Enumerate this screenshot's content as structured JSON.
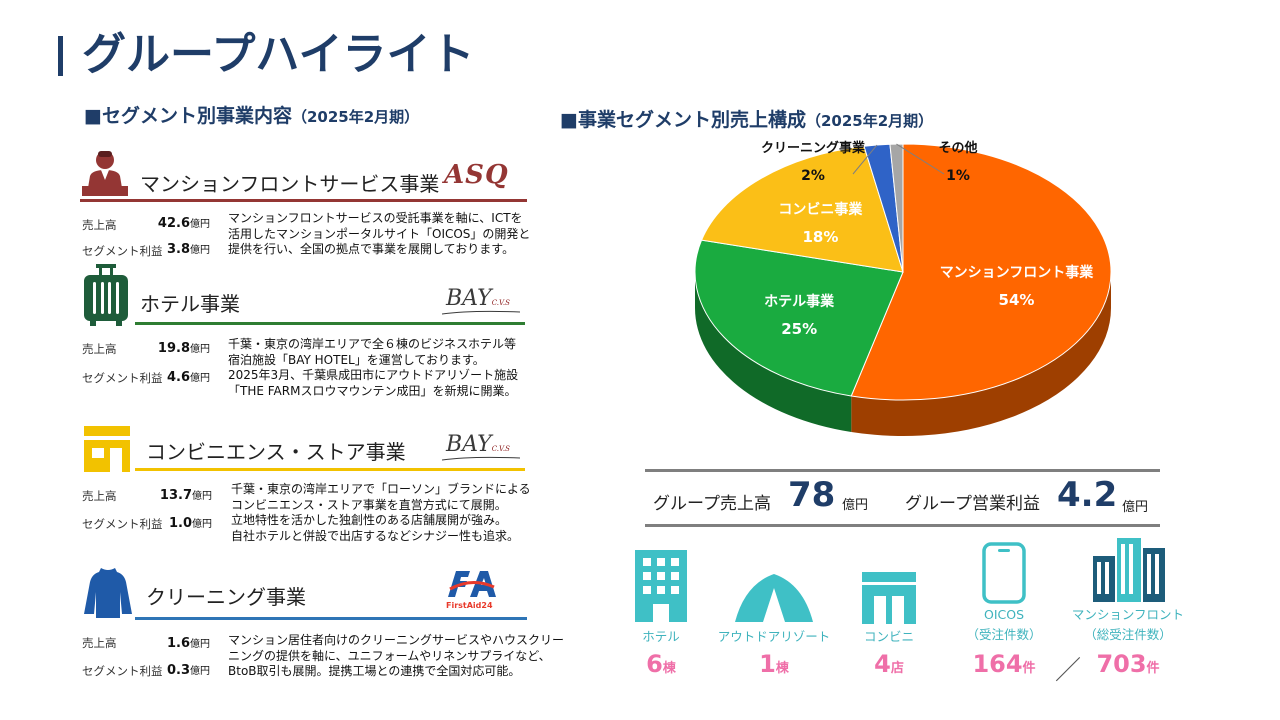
{
  "page": {
    "title": "グループハイライト"
  },
  "left_section": {
    "heading": "■セグメント別事業内容",
    "period": "（2025年2月期）",
    "segments": [
      {
        "name": "マンションフロントサービス事業",
        "logo": "ASQ",
        "color": "#943634",
        "sales_label": "売上高",
        "sales_value": "42.6",
        "sales_unit": "億円",
        "profit_label": "セグメント利益",
        "profit_value": "3.8",
        "profit_unit": "億円",
        "desc": [
          "マンションフロントサービスの受託事業を軸に、ICTを",
          "活用したマンションポータルサイト「OICOS」の開発と",
          "提供を行い、全国の拠点で事業を展開しております。"
        ]
      },
      {
        "name": "ホテル事業",
        "logo": "BAY",
        "logo_sub": "C.V.S",
        "color": "#2e7d32",
        "sales_label": "売上高",
        "sales_value": "19.8",
        "sales_unit": "億円",
        "profit_label": "セグメント利益",
        "profit_value": "4.6",
        "profit_unit": "億円",
        "desc": [
          "千葉・東京の湾岸エリアで全６棟のビジネスホテル等",
          "宿泊施設「BAY HOTEL」を運営しております。",
          "2025年3月、千葉県成田市にアウトドアリゾート施設",
          "「THE FARMスロウマウンテン成田」を新規に開業。"
        ]
      },
      {
        "name": "コンビニエンス・ストア事業",
        "logo": "BAY",
        "logo_sub": "C.V.S",
        "color": "#f2c200",
        "sales_label": "売上高",
        "sales_value": "13.7",
        "sales_unit": "億円",
        "profit_label": "セグメント利益",
        "profit_value": "1.0",
        "profit_unit": "億円",
        "desc": [
          "千葉・東京の湾岸エリアで「ローソン」ブランドによる",
          "コンビニエンス・ストア事業を直営方式にて展開。",
          "立地特性を活かした独創性のある店舗展開が強み。",
          "自社ホテルと併設で出店するなどシナジー性も追求。"
        ]
      },
      {
        "name": "クリーニング事業",
        "logo": "FA",
        "logo_sub": "FirstAid24",
        "color": "#2e75b6",
        "sales_label": "売上高",
        "sales_value": "1.6",
        "sales_unit": "億円",
        "profit_label": "セグメント利益",
        "profit_value": "0.3",
        "profit_unit": "億円",
        "desc": [
          "マンション居住者向けのクリーニングサービスやハウスクリー",
          "ニングの提供を軸に、ユニフォームやリネンサプライなど、",
          "BtoB取引も展開。提携工場との連携で全国対応可能。"
        ]
      }
    ]
  },
  "right_section": {
    "heading": "■事業セグメント別売上構成",
    "period": "（2025年2月期）"
  },
  "chart_data": {
    "type": "pie",
    "style": "3d",
    "slices": [
      {
        "name": "マンションフロント事業",
        "value": 54,
        "label": "54%",
        "color": "#ff6600"
      },
      {
        "name": "ホテル事業",
        "value": 25,
        "label": "25%",
        "color": "#1aab40"
      },
      {
        "name": "コンビニ事業",
        "value": 18,
        "label": "18%",
        "color": "#fbbf17"
      },
      {
        "name": "クリーニング事業",
        "value": 2,
        "label": "2%",
        "color": "#2f63c7"
      },
      {
        "name": "その他",
        "value": 1,
        "label": "1%",
        "color": "#a6a6a6"
      }
    ]
  },
  "totals": {
    "sales_label": "グループ売上高",
    "sales_value": "78",
    "sales_unit": "億円",
    "profit_label": "グループ営業利益",
    "profit_value": "4.2",
    "profit_unit": "億円"
  },
  "stats": [
    {
      "icon": "hotel-building-icon",
      "label": "ホテル",
      "sublabel": "",
      "value": "6",
      "unit": "棟"
    },
    {
      "icon": "tent-icon",
      "label": "アウトドアリゾート",
      "sublabel": "",
      "value": "1",
      "unit": "棟"
    },
    {
      "icon": "convenience-store-icon",
      "label": "コンビニ",
      "sublabel": "",
      "value": "4",
      "unit": "店"
    },
    {
      "icon": "smartphone-icon",
      "label": "OICOS",
      "sublabel": "（受注件数）",
      "value": "164",
      "unit": "件"
    },
    {
      "icon": "apartment-buildings-icon",
      "label": "マンションフロント",
      "sublabel": "（総受注件数）",
      "value": "703",
      "unit": "件"
    }
  ],
  "stats_separator": "／",
  "colors": {
    "title": "#1f3d68",
    "accent_teal": "#3fb3bd",
    "accent_pink": "#ef6fa8"
  }
}
